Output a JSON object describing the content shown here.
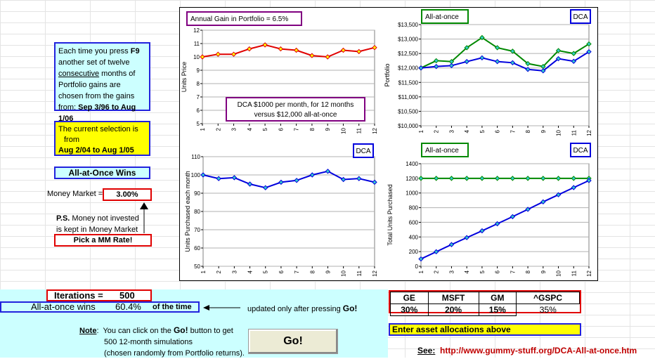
{
  "sidebar": {
    "info_pre": "Each time you press ",
    "info_key": "F9",
    "info_mid1": " another set of twelve ",
    "info_consecutive": "consecutive",
    "info_mid2": " months of Portfolio gains are chosen from the gains from:",
    "info_range": "Sep 3/96 to Aug 1/06",
    "selection_line1": "The current selection is",
    "selection_line2": "from",
    "selection_range": "Aug 2/04 to Aug 1/05",
    "result_banner": "All-at-Once Wins",
    "money_market_label": "Money Market =",
    "money_market_value": "3.00%",
    "ps_bold": "P.S.",
    "ps_text": " Money not invested is kept in Money Market",
    "pick_rate": "Pick a MM Rate!"
  },
  "bottom": {
    "iterations_label": "Iterations =",
    "iterations_value": "500",
    "wins_label": "All-at-once wins",
    "wins_value": "60.4%",
    "of_the_time": "of the time",
    "updated_note": "updated only after pressing",
    "go_word": "Go!",
    "note_label": "Note",
    "note_line1_a": "You can click on the",
    "note_line1_b": "button to get",
    "note_line2": "500 12-month simulations",
    "note_line3": "(chosen randomly from Portfolio returns).",
    "go_button": "Go!",
    "assets": [
      "GE",
      "MSFT",
      "GM",
      "^GSPC"
    ],
    "allocations": [
      "30%",
      "20%",
      "15%",
      "35%"
    ],
    "enter_alloc": "Enter asset allocations above",
    "see_label": "See:",
    "see_url": "http://www.gummy-stuff.org/DCA-All-at-once.htm"
  },
  "colors": {
    "red": "#e00000",
    "blue": "#0000dd",
    "green": "#008800",
    "cyan_bg": "#ccffff",
    "yellow": "#ffff00",
    "purple": "#800080"
  },
  "chart_data": [
    {
      "id": "units-price",
      "type": "line",
      "title": "Annual Gain in Portfolio = 6.5%",
      "ylabel": "Units Price",
      "x": [
        1,
        2,
        3,
        4,
        5,
        6,
        7,
        8,
        9,
        10,
        11,
        12
      ],
      "ylim": [
        5,
        12
      ],
      "yticks": [
        "5",
        "6",
        "7",
        "8",
        "9",
        "10",
        "11",
        "12"
      ],
      "series": [
        {
          "color": "#e00000",
          "values": [
            10.0,
            10.2,
            10.2,
            10.6,
            10.9,
            10.6,
            10.5,
            10.1,
            10.0,
            10.5,
            10.4,
            10.7
          ]
        }
      ],
      "annotation": [
        "DCA $1000 per month, for 12 months",
        "versus $12,000 all-at-once"
      ],
      "grid": true
    },
    {
      "id": "portfolio",
      "type": "line",
      "title": "All-at-once",
      "legend": "DCA",
      "ylabel": "Portfolio",
      "x": [
        1,
        2,
        3,
        4,
        5,
        6,
        7,
        8,
        9,
        10,
        11,
        12
      ],
      "ylim": [
        10000,
        13500
      ],
      "yticks": [
        "$10,000",
        "$10,500",
        "$11,000",
        "$11,500",
        "$12,000",
        "$12,500",
        "$13,000",
        "$13,500"
      ],
      "series": [
        {
          "color": "#008800",
          "values": [
            12000,
            12250,
            12220,
            12700,
            13050,
            12700,
            12580,
            12150,
            12050,
            12600,
            12500,
            12830
          ]
        },
        {
          "color": "#0000dd",
          "values": [
            12000,
            12050,
            12080,
            12220,
            12350,
            12220,
            12180,
            11950,
            11900,
            12320,
            12230,
            12560
          ]
        }
      ],
      "grid": true
    },
    {
      "id": "units-purchased",
      "type": "line",
      "legend": "DCA",
      "ylabel": "Units Purchased each month",
      "x": [
        1,
        2,
        3,
        4,
        5,
        6,
        7,
        8,
        9,
        10,
        11,
        12
      ],
      "ylim": [
        50,
        110
      ],
      "yticks": [
        "50",
        "60",
        "70",
        "80",
        "90",
        "100",
        "110"
      ],
      "series": [
        {
          "color": "#0000dd",
          "values": [
            100.0,
            98.0,
            98.5,
            95.0,
            93.0,
            96.0,
            97.0,
            100.0,
            102.0,
            97.5,
            98.0,
            96.0
          ]
        }
      ],
      "grid": true
    },
    {
      "id": "total-units",
      "type": "line",
      "title": "All-at-once",
      "legend": "DCA",
      "ylabel": "Total Units  Purchased",
      "x": [
        1,
        2,
        3,
        4,
        5,
        6,
        7,
        8,
        9,
        10,
        11,
        12
      ],
      "ylim": [
        0,
        1400
      ],
      "yticks": [
        "0",
        "200",
        "400",
        "600",
        "800",
        "1000",
        "1200",
        "1400"
      ],
      "series": [
        {
          "color": "#008800",
          "values": [
            1200,
            1200,
            1200,
            1200,
            1200,
            1200,
            1200,
            1200,
            1200,
            1200,
            1200,
            1200
          ]
        },
        {
          "color": "#0000dd",
          "values": [
            100,
            198,
            296,
            391,
            484,
            580,
            677,
            777,
            879,
            976,
            1074,
            1170
          ]
        }
      ],
      "grid": true
    }
  ]
}
